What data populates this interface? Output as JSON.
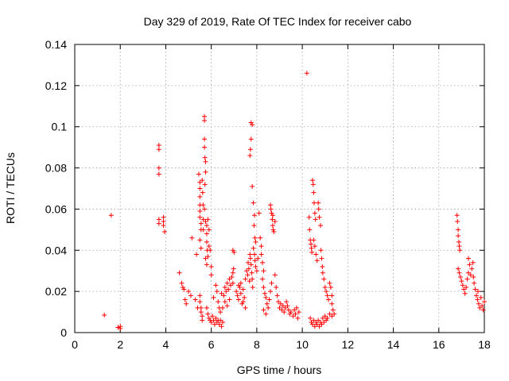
{
  "chart_data": {
    "type": "scatter",
    "title": "Day 329 of 2019, Rate Of TEC Index for receiver cabo",
    "xlabel": "GPS time / hours",
    "ylabel": "ROTI / TECUs",
    "xlim": [
      0,
      18
    ],
    "ylim": [
      0,
      0.14
    ],
    "xticks": [
      "0",
      "2",
      "4",
      "6",
      "8",
      "10",
      "12",
      "14",
      "16",
      "18"
    ],
    "yticks": [
      "0",
      "0.02",
      "0.04",
      "0.06",
      "0.08",
      "0.1",
      "0.12",
      "0.14"
    ],
    "grid": true,
    "marker": "+",
    "color": "#ff0000",
    "series": [
      {
        "name": "ROTI",
        "points": [
          [
            1.3,
            0.0085
          ],
          [
            1.6,
            0.057
          ],
          [
            1.9,
            0.0025
          ],
          [
            2.0,
            0.003
          ],
          [
            2.0,
            0.002
          ],
          [
            3.7,
            0.091
          ],
          [
            3.7,
            0.089
          ],
          [
            3.7,
            0.08
          ],
          [
            3.7,
            0.077
          ],
          [
            3.7,
            0.055
          ],
          [
            3.7,
            0.053
          ],
          [
            3.9,
            0.056
          ],
          [
            3.9,
            0.054
          ],
          [
            3.9,
            0.052
          ],
          [
            3.95,
            0.049
          ],
          [
            4.6,
            0.029
          ],
          [
            4.7,
            0.024
          ],
          [
            4.75,
            0.022
          ],
          [
            4.8,
            0.021
          ],
          [
            4.85,
            0.016
          ],
          [
            4.9,
            0.014
          ],
          [
            5.0,
            0.02
          ],
          [
            5.1,
            0.018
          ],
          [
            5.15,
            0.046
          ],
          [
            5.3,
            0.016
          ],
          [
            5.35,
            0.038
          ],
          [
            5.4,
            0.012
          ],
          [
            5.45,
            0.077
          ],
          [
            5.5,
            0.073
          ],
          [
            5.5,
            0.07
          ],
          [
            5.5,
            0.066
          ],
          [
            5.5,
            0.062
          ],
          [
            5.5,
            0.059
          ],
          [
            5.5,
            0.056
          ],
          [
            5.55,
            0.053
          ],
          [
            5.55,
            0.05
          ],
          [
            5.5,
            0.045
          ],
          [
            5.55,
            0.041
          ],
          [
            5.5,
            0.018
          ],
          [
            5.5,
            0.015
          ],
          [
            5.55,
            0.012
          ],
          [
            5.55,
            0.01
          ],
          [
            5.6,
            0.008
          ],
          [
            5.6,
            0.006
          ],
          [
            5.6,
            0.074
          ],
          [
            5.62,
            0.068
          ],
          [
            5.64,
            0.062
          ],
          [
            5.65,
            0.055
          ],
          [
            5.65,
            0.05
          ],
          [
            5.7,
            0.105
          ],
          [
            5.7,
            0.103
          ],
          [
            5.7,
            0.094
          ],
          [
            5.7,
            0.09
          ],
          [
            5.72,
            0.085
          ],
          [
            5.75,
            0.083
          ],
          [
            5.75,
            0.078
          ],
          [
            5.72,
            0.072
          ],
          [
            5.7,
            0.06
          ],
          [
            5.75,
            0.054
          ],
          [
            5.8,
            0.052
          ],
          [
            5.8,
            0.048
          ],
          [
            5.8,
            0.044
          ],
          [
            5.82,
            0.04
          ],
          [
            5.85,
            0.037
          ],
          [
            5.75,
            0.036
          ],
          [
            5.8,
            0.033
          ],
          [
            5.85,
            0.055
          ],
          [
            5.9,
            0.05
          ],
          [
            5.9,
            0.042
          ],
          [
            5.95,
            0.04
          ],
          [
            6.0,
            0.032
          ],
          [
            6.0,
            0.028
          ],
          [
            5.8,
            0.012
          ],
          [
            5.85,
            0.009
          ],
          [
            5.9,
            0.007
          ],
          [
            5.95,
            0.006
          ],
          [
            6.0,
            0.005
          ],
          [
            6.05,
            0.008
          ],
          [
            6.1,
            0.006
          ],
          [
            6.15,
            0.004
          ],
          [
            6.2,
            0.007
          ],
          [
            6.25,
            0.005
          ],
          [
            6.3,
            0.006
          ],
          [
            6.35,
            0.004
          ],
          [
            6.4,
            0.006
          ],
          [
            6.45,
            0.003
          ],
          [
            6.5,
            0.005
          ],
          [
            6.1,
            0.017
          ],
          [
            6.2,
            0.023
          ],
          [
            6.25,
            0.02
          ],
          [
            6.3,
            0.015
          ],
          [
            6.35,
            0.012
          ],
          [
            6.4,
            0.01
          ],
          [
            6.45,
            0.019
          ],
          [
            6.5,
            0.012
          ],
          [
            6.55,
            0.018
          ],
          [
            6.6,
            0.022
          ],
          [
            6.65,
            0.02
          ],
          [
            6.7,
            0.024
          ],
          [
            6.75,
            0.021
          ],
          [
            6.8,
            0.026
          ],
          [
            6.85,
            0.023
          ],
          [
            6.9,
            0.027
          ],
          [
            6.95,
            0.024
          ],
          [
            6.6,
            0.015
          ],
          [
            6.7,
            0.013
          ],
          [
            6.8,
            0.016
          ],
          [
            6.95,
            0.029
          ],
          [
            7.0,
            0.039
          ],
          [
            6.95,
            0.04
          ],
          [
            6.98,
            0.031
          ],
          [
            7.1,
            0.02
          ],
          [
            7.15,
            0.018
          ],
          [
            7.2,
            0.016
          ],
          [
            7.25,
            0.022
          ],
          [
            7.3,
            0.019
          ],
          [
            7.35,
            0.014
          ],
          [
            7.4,
            0.021
          ],
          [
            7.45,
            0.017
          ],
          [
            7.5,
            0.012
          ],
          [
            7.2,
            0.023
          ],
          [
            7.3,
            0.024
          ],
          [
            7.4,
            0.015
          ],
          [
            7.5,
            0.026
          ],
          [
            7.55,
            0.03
          ],
          [
            7.6,
            0.028
          ],
          [
            7.62,
            0.034
          ],
          [
            7.65,
            0.031
          ],
          [
            7.68,
            0.025
          ],
          [
            7.7,
            0.038
          ],
          [
            7.72,
            0.036
          ],
          [
            7.75,
            0.033
          ],
          [
            7.78,
            0.029
          ],
          [
            7.8,
            0.026
          ],
          [
            7.82,
            0.022
          ],
          [
            7.85,
            0.041
          ],
          [
            7.9,
            0.038
          ],
          [
            7.92,
            0.035
          ],
          [
            7.95,
            0.032
          ],
          [
            8.0,
            0.03
          ],
          [
            8.05,
            0.036
          ],
          [
            7.75,
            0.102
          ],
          [
            7.8,
            0.101
          ],
          [
            7.75,
            0.094
          ],
          [
            7.72,
            0.089
          ],
          [
            7.7,
            0.086
          ],
          [
            7.8,
            0.071
          ],
          [
            7.85,
            0.063
          ],
          [
            7.9,
            0.057
          ],
          [
            7.88,
            0.052
          ],
          [
            7.92,
            0.046
          ],
          [
            7.95,
            0.044
          ],
          [
            8.1,
            0.058
          ],
          [
            8.15,
            0.046
          ],
          [
            8.2,
            0.042
          ],
          [
            8.2,
            0.038
          ],
          [
            8.25,
            0.034
          ],
          [
            8.3,
            0.03
          ],
          [
            8.25,
            0.026
          ],
          [
            8.3,
            0.022
          ],
          [
            8.35,
            0.019
          ],
          [
            8.4,
            0.017
          ],
          [
            8.45,
            0.014
          ],
          [
            8.5,
            0.012
          ],
          [
            8.3,
            0.011
          ],
          [
            8.4,
            0.009
          ],
          [
            8.55,
            0.016
          ],
          [
            8.6,
            0.02
          ],
          [
            8.65,
            0.024
          ],
          [
            8.6,
            0.062
          ],
          [
            8.62,
            0.06
          ],
          [
            8.65,
            0.058
          ],
          [
            8.68,
            0.055
          ],
          [
            8.7,
            0.052
          ],
          [
            8.72,
            0.05
          ],
          [
            8.75,
            0.049
          ],
          [
            8.7,
            0.057
          ],
          [
            8.8,
            0.054
          ],
          [
            8.8,
            0.028
          ],
          [
            8.85,
            0.022
          ],
          [
            8.9,
            0.018
          ],
          [
            8.95,
            0.015
          ],
          [
            9.0,
            0.012
          ],
          [
            9.05,
            0.014
          ],
          [
            9.1,
            0.011
          ],
          [
            9.15,
            0.013
          ],
          [
            9.2,
            0.01
          ],
          [
            9.25,
            0.012
          ],
          [
            9.3,
            0.015
          ],
          [
            9.35,
            0.013
          ],
          [
            9.4,
            0.011
          ],
          [
            9.45,
            0.009
          ],
          [
            9.5,
            0.01
          ],
          [
            9.6,
            0.008
          ],
          [
            9.65,
            0.011
          ],
          [
            9.7,
            0.009
          ],
          [
            9.75,
            0.012
          ],
          [
            9.8,
            0.007
          ],
          [
            9.85,
            0.01
          ],
          [
            10.2,
            0.126
          ],
          [
            10.3,
            0.056
          ],
          [
            10.32,
            0.05
          ],
          [
            10.35,
            0.045
          ],
          [
            10.38,
            0.043
          ],
          [
            10.4,
            0.041
          ],
          [
            10.42,
            0.039
          ],
          [
            10.45,
            0.074
          ],
          [
            10.48,
            0.072
          ],
          [
            10.5,
            0.068
          ],
          [
            10.52,
            0.063
          ],
          [
            10.55,
            0.058
          ],
          [
            10.58,
            0.055
          ],
          [
            10.5,
            0.045
          ],
          [
            10.55,
            0.042
          ],
          [
            10.6,
            0.038
          ],
          [
            10.65,
            0.035
          ],
          [
            10.7,
            0.063
          ],
          [
            10.72,
            0.06
          ],
          [
            10.75,
            0.056
          ],
          [
            10.8,
            0.052
          ],
          [
            10.82,
            0.04
          ],
          [
            10.85,
            0.036
          ],
          [
            10.88,
            0.032
          ],
          [
            10.9,
            0.029
          ],
          [
            10.95,
            0.026
          ],
          [
            11.0,
            0.022
          ],
          [
            11.05,
            0.02
          ],
          [
            11.1,
            0.018
          ],
          [
            11.15,
            0.016
          ],
          [
            11.2,
            0.024
          ],
          [
            11.25,
            0.022
          ],
          [
            11.3,
            0.018
          ],
          [
            11.3,
            0.014
          ],
          [
            11.35,
            0.011
          ],
          [
            11.4,
            0.009
          ],
          [
            10.35,
            0.007
          ],
          [
            10.4,
            0.005
          ],
          [
            10.45,
            0.004
          ],
          [
            10.5,
            0.006
          ],
          [
            10.55,
            0.003
          ],
          [
            10.6,
            0.005
          ],
          [
            10.65,
            0.004
          ],
          [
            10.7,
            0.006
          ],
          [
            10.75,
            0.003
          ],
          [
            10.8,
            0.005
          ],
          [
            10.85,
            0.004
          ],
          [
            10.9,
            0.007
          ],
          [
            10.95,
            0.005
          ],
          [
            11.0,
            0.008
          ],
          [
            11.05,
            0.006
          ],
          [
            11.1,
            0.007
          ],
          [
            11.2,
            0.009
          ],
          [
            11.3,
            0.008
          ],
          [
            16.8,
            0.057
          ],
          [
            16.82,
            0.054
          ],
          [
            16.85,
            0.05
          ],
          [
            16.85,
            0.047
          ],
          [
            16.88,
            0.044
          ],
          [
            16.9,
            0.042
          ],
          [
            16.92,
            0.04
          ],
          [
            16.85,
            0.031
          ],
          [
            16.9,
            0.029
          ],
          [
            16.95,
            0.027
          ],
          [
            17.0,
            0.025
          ],
          [
            17.05,
            0.023
          ],
          [
            17.1,
            0.021
          ],
          [
            17.15,
            0.019
          ],
          [
            17.2,
            0.022
          ],
          [
            17.25,
            0.026
          ],
          [
            17.3,
            0.029
          ],
          [
            17.3,
            0.036
          ],
          [
            17.35,
            0.033
          ],
          [
            17.4,
            0.028
          ],
          [
            17.45,
            0.031
          ],
          [
            17.5,
            0.034
          ],
          [
            17.52,
            0.027
          ],
          [
            17.55,
            0.024
          ],
          [
            17.6,
            0.021
          ],
          [
            17.65,
            0.018
          ],
          [
            17.7,
            0.016
          ],
          [
            17.72,
            0.02
          ],
          [
            17.75,
            0.014
          ],
          [
            17.8,
            0.012
          ],
          [
            17.85,
            0.017
          ],
          [
            17.9,
            0.013
          ],
          [
            17.95,
            0.011
          ],
          [
            18.0,
            0.015
          ]
        ]
      }
    ]
  }
}
